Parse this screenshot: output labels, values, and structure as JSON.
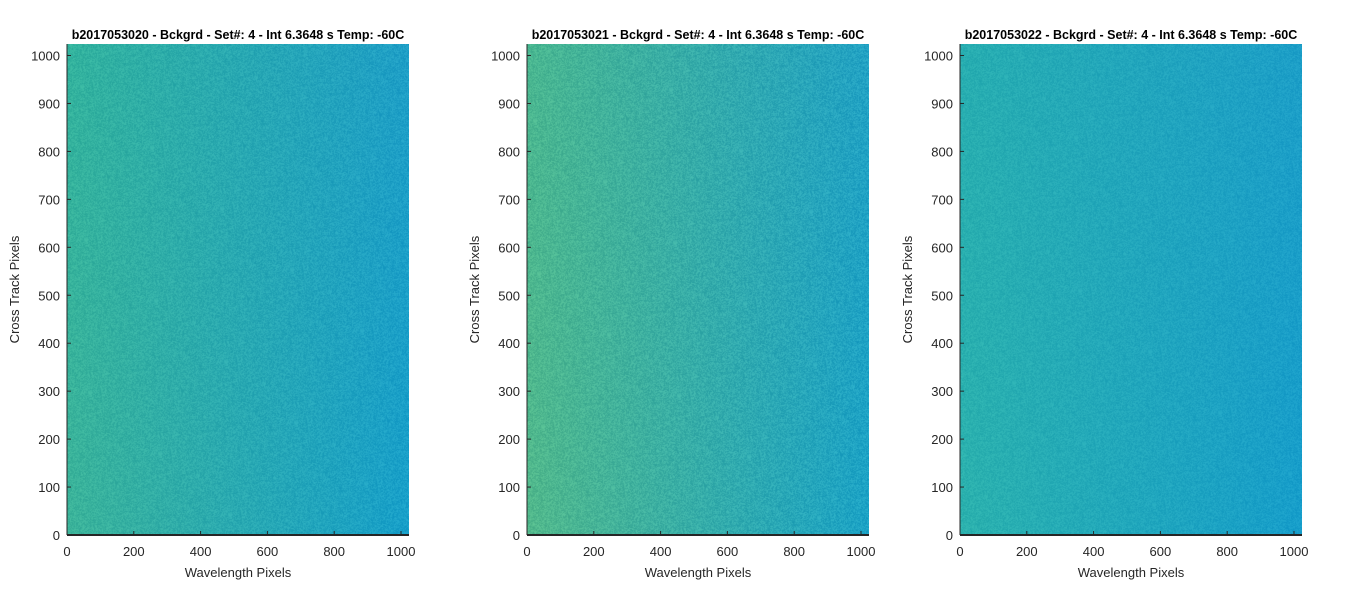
{
  "chart_data": [
    {
      "type": "heatmap",
      "title": "b2017053020 - Bckgrd - Set#: 4 - Int 6.3648 s Temp: -60C",
      "xlabel": "Wavelength Pixels",
      "ylabel": "Cross Track Pixels",
      "xlim": [
        0,
        1024
      ],
      "ylim": [
        0,
        1024
      ],
      "xticks": [
        0,
        200,
        400,
        600,
        800,
        1000
      ],
      "yticks": [
        0,
        100,
        200,
        300,
        400,
        500,
        600,
        700,
        800,
        900,
        1000
      ],
      "colormap": "parula",
      "colors": {
        "top_left": "#33b39e",
        "top_right": "#1f9fc7",
        "bottom_left": "#3cb49a",
        "bottom_right": "#18a0ca"
      },
      "noise": 0.05,
      "grid": false,
      "legend": "none"
    },
    {
      "type": "heatmap",
      "title": "b2017053021 - Bckgrd - Set#: 4 - Int 6.3648 s Temp: -60C",
      "xlabel": "Wavelength Pixels",
      "ylabel": "Cross Track Pixels",
      "xlim": [
        0,
        1024
      ],
      "ylim": [
        0,
        1024
      ],
      "xticks": [
        0,
        200,
        400,
        600,
        800,
        1000
      ],
      "yticks": [
        0,
        100,
        200,
        300,
        400,
        500,
        600,
        700,
        800,
        900,
        1000
      ],
      "colormap": "parula",
      "colors": {
        "top_left": "#4ab791",
        "top_right": "#22a2c4",
        "bottom_left": "#52b98c",
        "bottom_right": "#1ca3c6"
      },
      "noise": 0.06,
      "grid": false,
      "legend": "none"
    },
    {
      "type": "heatmap",
      "title": "b2017053022 - Bckgrd - Set#: 4 - Int 6.3648 s Temp: -60C",
      "xlabel": "Wavelength Pixels",
      "ylabel": "Cross Track Pixels",
      "xlim": [
        0,
        1024
      ],
      "ylim": [
        0,
        1024
      ],
      "xticks": [
        0,
        200,
        400,
        600,
        800,
        1000
      ],
      "yticks": [
        0,
        100,
        200,
        300,
        400,
        500,
        600,
        700,
        800,
        900,
        1000
      ],
      "colormap": "parula",
      "colors": {
        "top_left": "#28aeb1",
        "top_right": "#1d9fc8",
        "bottom_left": "#2cb2ae",
        "bottom_right": "#179ecb"
      },
      "noise": 0.04,
      "grid": false,
      "legend": "none"
    }
  ]
}
